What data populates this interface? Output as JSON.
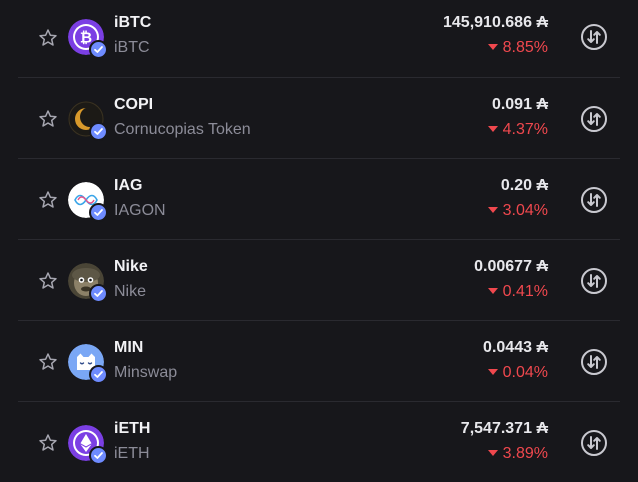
{
  "currency_symbol": "₳",
  "tokens": [
    {
      "symbol": "iBTC",
      "name": "iBTC",
      "price": "145,910.686",
      "change": "8.85%",
      "icon": "bitcoin-icon"
    },
    {
      "symbol": "COPI",
      "name": "Cornucopias Token",
      "price": "0.091",
      "change": "4.37%",
      "icon": "copi-logo"
    },
    {
      "symbol": "IAG",
      "name": "IAGON",
      "price": "0.20",
      "change": "3.04%",
      "icon": "iagon-logo"
    },
    {
      "symbol": "Nike",
      "name": "Nike",
      "price": "0.00677",
      "change": "0.41%",
      "icon": "nike-logo"
    },
    {
      "symbol": "MIN",
      "name": "Minswap",
      "price": "0.0443",
      "change": "0.04%",
      "icon": "minswap-logo"
    },
    {
      "symbol": "iETH",
      "name": "iETH",
      "price": "7,547.371",
      "change": "3.89%",
      "icon": "ethereum-icon"
    }
  ],
  "colors": {
    "background": "#17171b",
    "negative": "#f0484e",
    "verified": "#6e8bff"
  }
}
